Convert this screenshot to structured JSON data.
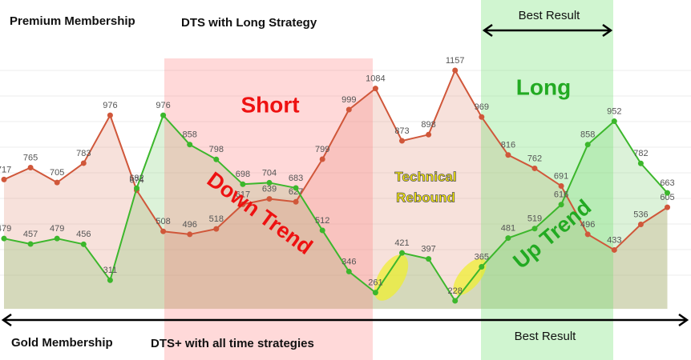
{
  "chart_data": {
    "type": "line",
    "top_left": "Premium Membership",
    "top_center": "DTS with Long Strategy",
    "top_right": "Best Result",
    "bottom_left": "Gold Membership",
    "bottom_center": "DTS+ with all time strategies",
    "bottom_right": "Best Result",
    "annotations": [
      "Short",
      "Long",
      "Down Trend",
      "Technical",
      "Rebound",
      "Up Trend"
    ],
    "series": [
      {
        "color": "#d0573a",
        "values": [
          717,
          765,
          705,
          783,
          976,
          674,
          508,
          496,
          518,
          617,
          639,
          627,
          799,
          999,
          1084,
          873,
          898,
          1157,
          969,
          816,
          762,
          691,
          496,
          433,
          536,
          605
        ]
      },
      {
        "color": "#3cb72c",
        "values": [
          479,
          457,
          479,
          456,
          311,
          682,
          976,
          858,
          798,
          698,
          704,
          683,
          512,
          346,
          261,
          421,
          397,
          228,
          365,
          481,
          519,
          616,
          858,
          952,
          782,
          663
        ]
      }
    ]
  }
}
